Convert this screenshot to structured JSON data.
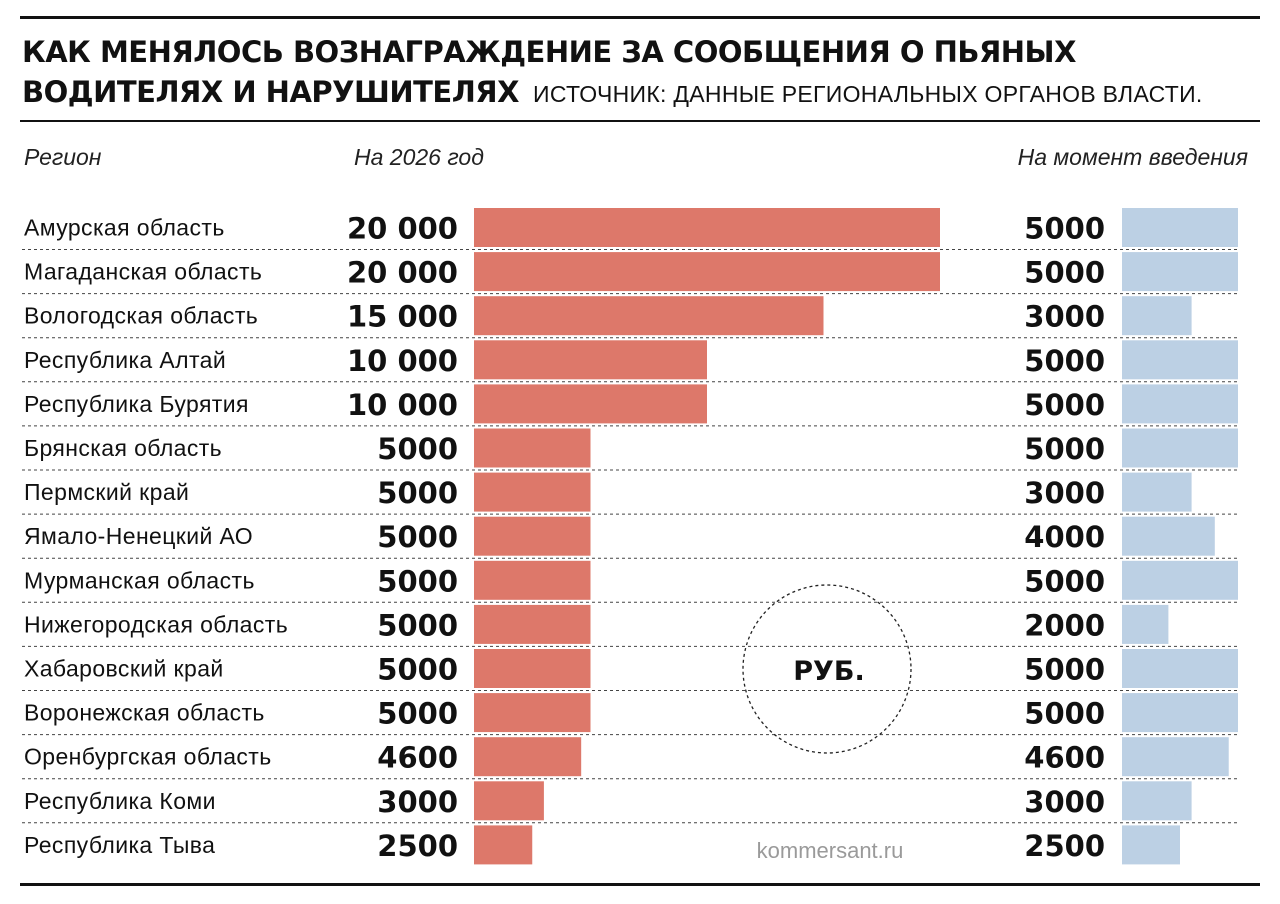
{
  "header": {
    "title": "КАК МЕНЯЛОСЬ ВОЗНАГРАЖДЕНИЕ ЗА СООБЩЕНИЯ О ПЬЯНЫХ ВОДИТЕЛЯХ И НАРУШИТЕЛЯХ",
    "source": "ИСТОЧНИК: ДАННЫЕ РЕГИОНАЛЬНЫХ ОРГАНОВ ВЛАСТИ."
  },
  "columns": {
    "region": "Регион",
    "current": "На 2026 год",
    "initial": "На момент введения"
  },
  "unit_label": "РУБ.",
  "credit": "kommersant.ru",
  "colors": {
    "current_bar": "#dd786a",
    "initial_bar": "#bcd0e4",
    "text": "#111111"
  },
  "chart_data": {
    "type": "bar",
    "orientation": "horizontal",
    "categories": [
      "Амурская область",
      "Магаданская область",
      "Вологодская область",
      "Республика Алтай",
      "Республика Бурятия",
      "Брянская область",
      "Пермский край",
      "Ямало-Ненецкий АО",
      "Мурманская область",
      "Нижегородская область",
      "Хабаровский край",
      "Воронежская область",
      "Оренбургская область",
      "Республика Коми",
      "Республика Тыва"
    ],
    "series": [
      {
        "name": "На 2026 год",
        "values": [
          20000,
          20000,
          15000,
          10000,
          10000,
          5000,
          5000,
          5000,
          5000,
          5000,
          5000,
          5000,
          4600,
          3000,
          2500
        ],
        "labels": [
          "20 000",
          "20 000",
          "15 000",
          "10 000",
          "10 000",
          "5000",
          "5000",
          "5000",
          "5000",
          "5000",
          "5000",
          "5000",
          "4600",
          "3000",
          "2500"
        ]
      },
      {
        "name": "На момент введения",
        "values": [
          5000,
          5000,
          3000,
          5000,
          5000,
          5000,
          3000,
          4000,
          5000,
          2000,
          5000,
          5000,
          4600,
          3000,
          2500
        ],
        "labels": [
          "5000",
          "5000",
          "3000",
          "5000",
          "5000",
          "5000",
          "3000",
          "4000",
          "5000",
          "2000",
          "5000",
          "5000",
          "4600",
          "3000",
          "2500"
        ]
      }
    ],
    "xlim_current": [
      0,
      20000
    ],
    "xlim_initial": [
      0,
      5000
    ],
    "grid": false
  }
}
